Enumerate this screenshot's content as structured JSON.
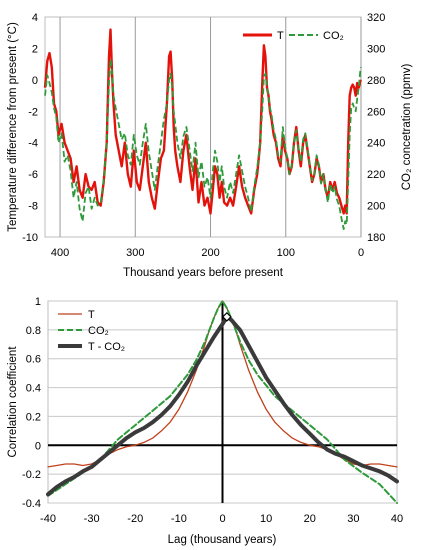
{
  "chart_data": [
    {
      "type": "line",
      "xlabel": "Thousand years before present",
      "ylabel": "Temperature difference from present (°C)",
      "y2label": "CO₂ concetration (ppmv)",
      "xlim": [
        420,
        0
      ],
      "ylim": [
        -10,
        4
      ],
      "y2lim": [
        180,
        320
      ],
      "x_ticks": [
        400,
        300,
        200,
        100,
        0
      ],
      "y_ticks": [
        -10,
        -8,
        -6,
        -4,
        -2,
        0,
        2,
        4
      ],
      "y2_ticks": [
        180,
        200,
        220,
        240,
        260,
        280,
        300,
        320
      ],
      "grid": "vertical",
      "legend": "top-right",
      "series": [
        {
          "name": "T",
          "color": "#e3120b",
          "style": "solid",
          "x": [
            420,
            417,
            414,
            411,
            408,
            405,
            402,
            398,
            394,
            390,
            386,
            382,
            378,
            374,
            370,
            366,
            362,
            358,
            354,
            350,
            346,
            342,
            338,
            335,
            333,
            331,
            329,
            326,
            322,
            318,
            314,
            310,
            306,
            302,
            298,
            294,
            290,
            286,
            282,
            278,
            274,
            270,
            266,
            262,
            258,
            255,
            253,
            251,
            249,
            247,
            244,
            240,
            236,
            232,
            228,
            224,
            220,
            216,
            212,
            208,
            204,
            200,
            197,
            194,
            191,
            188,
            185,
            182,
            178,
            174,
            170,
            166,
            162,
            158,
            154,
            150,
            146,
            142,
            138,
            134,
            131,
            129,
            127,
            125,
            123,
            121,
            119,
            116,
            113,
            110,
            107,
            104,
            101,
            98,
            95,
            92,
            89,
            86,
            83,
            80,
            77,
            74,
            71,
            68,
            65,
            62,
            59,
            56,
            53,
            50,
            47,
            44,
            41,
            38,
            35,
            32,
            29,
            26,
            23,
            21,
            19,
            17,
            15,
            13,
            11,
            9,
            7,
            5,
            3,
            1,
            0
          ],
          "values": [
            -0.5,
            1.2,
            1.7,
            0.8,
            -1.5,
            -2.0,
            -3.5,
            -2.8,
            -4.0,
            -4.5,
            -5.0,
            -6.5,
            -5.5,
            -7.0,
            -7.5,
            -6.0,
            -6.8,
            -7.0,
            -6.5,
            -7.8,
            -8.0,
            -6.5,
            -4.0,
            1.5,
            3.2,
            0.5,
            -1.5,
            -3.5,
            -4.5,
            -5.5,
            -4.0,
            -6.0,
            -6.8,
            -4.5,
            -6.5,
            -7.0,
            -5.5,
            -4.0,
            -6.5,
            -7.5,
            -8.2,
            -6.5,
            -5.0,
            -4.5,
            -1.5,
            1.5,
            1.8,
            0.0,
            -3.0,
            -4.5,
            -5.5,
            -6.5,
            -4.5,
            -3.5,
            -5.5,
            -7.0,
            -5.0,
            -7.8,
            -6.5,
            -8.0,
            -7.5,
            -8.5,
            -7.0,
            -5.5,
            -6.0,
            -7.5,
            -6.5,
            -7.8,
            -8.0,
            -7.5,
            -8.0,
            -6.8,
            -5.5,
            -6.8,
            -7.5,
            -8.0,
            -8.5,
            -7.0,
            -6.0,
            -4.0,
            0.0,
            2.2,
            1.5,
            -0.5,
            -1.0,
            -2.0,
            -2.5,
            -3.5,
            -4.0,
            -5.0,
            -5.5,
            -3.5,
            -4.5,
            -5.0,
            -6.0,
            -5.5,
            -4.0,
            -3.0,
            -4.5,
            -5.5,
            -4.0,
            -3.5,
            -4.5,
            -5.5,
            -6.5,
            -6.0,
            -5.0,
            -5.5,
            -6.5,
            -6.0,
            -7.0,
            -7.5,
            -6.5,
            -7.0,
            -6.5,
            -7.2,
            -7.5,
            -8.0,
            -8.5,
            -8.0,
            -8.5,
            -4.0,
            -1.0,
            -0.5,
            -0.3,
            -0.5,
            -1.0,
            -0.2,
            -0.5,
            -0.1,
            0.0
          ]
        },
        {
          "name": "CO₂",
          "color": "#2e9a3a",
          "style": "dashed",
          "axis": "right",
          "x": [
            420,
            417,
            414,
            411,
            408,
            405,
            402,
            398,
            394,
            390,
            386,
            382,
            378,
            374,
            370,
            366,
            362,
            358,
            354,
            350,
            346,
            342,
            338,
            335,
            333,
            331,
            329,
            326,
            322,
            318,
            314,
            310,
            306,
            302,
            298,
            294,
            290,
            286,
            282,
            278,
            274,
            270,
            266,
            262,
            258,
            255,
            253,
            251,
            249,
            247,
            244,
            240,
            236,
            232,
            228,
            224,
            220,
            216,
            212,
            208,
            204,
            200,
            197,
            194,
            191,
            188,
            185,
            182,
            178,
            174,
            170,
            166,
            162,
            158,
            154,
            150,
            146,
            142,
            138,
            134,
            131,
            129,
            127,
            125,
            123,
            121,
            119,
            116,
            113,
            110,
            107,
            104,
            101,
            98,
            95,
            92,
            89,
            86,
            83,
            80,
            77,
            74,
            71,
            68,
            65,
            62,
            59,
            56,
            53,
            50,
            47,
            44,
            41,
            38,
            35,
            32,
            29,
            26,
            23,
            21,
            19,
            17,
            15,
            13,
            11,
            9,
            7,
            5,
            3,
            1,
            0
          ],
          "values": [
            270,
            283,
            278,
            272,
            262,
            256,
            240,
            246,
            228,
            232,
            222,
            205,
            215,
            198,
            190,
            208,
            212,
            198,
            205,
            200,
            202,
            216,
            240,
            278,
            293,
            285,
            270,
            262,
            252,
            242,
            246,
            232,
            226,
            245,
            232,
            226,
            240,
            252,
            234,
            222,
            210,
            226,
            240,
            255,
            265,
            280,
            284,
            275,
            260,
            252,
            240,
            230,
            244,
            250,
            236,
            222,
            240,
            218,
            228,
            212,
            218,
            205,
            222,
            235,
            228,
            215,
            225,
            212,
            205,
            215,
            208,
            220,
            232,
            222,
            212,
            205,
            196,
            212,
            224,
            240,
            262,
            282,
            284,
            276,
            270,
            262,
            258,
            248,
            242,
            232,
            228,
            250,
            238,
            230,
            220,
            226,
            240,
            248,
            236,
            228,
            242,
            246,
            236,
            226,
            216,
            220,
            232,
            226,
            214,
            220,
            210,
            202,
            214,
            208,
            212,
            204,
            200,
            192,
            185,
            190,
            188,
            215,
            245,
            262,
            265,
            262,
            260,
            268,
            275,
            285,
            288
          ]
        }
      ]
    },
    {
      "type": "line",
      "xlabel": "Lag (thousand years)",
      "ylabel": "Correlation coefficient",
      "xlim": [
        -40,
        40
      ],
      "ylim": [
        -0.4,
        1
      ],
      "x_ticks": [
        -40,
        -30,
        -20,
        -10,
        0,
        10,
        20,
        30,
        40
      ],
      "y_ticks": [
        -0.4,
        -0.2,
        0,
        0.2,
        0.4,
        0.6,
        0.8,
        1
      ],
      "grid": "horizontal",
      "legend": "top-left",
      "series": [
        {
          "name": "T",
          "color": "#c1401b",
          "style": "solid",
          "x": [
            -40,
            -38,
            -36,
            -34,
            -32,
            -30,
            -28,
            -26,
            -24,
            -22,
            -20,
            -18,
            -16,
            -14,
            -12,
            -10,
            -8,
            -6,
            -4,
            -3,
            -2,
            -1,
            0,
            1,
            2,
            3,
            4,
            6,
            8,
            10,
            12,
            14,
            16,
            18,
            20,
            22,
            24,
            26,
            28,
            30,
            32,
            34,
            36,
            38,
            40
          ],
          "values": [
            -0.15,
            -0.14,
            -0.13,
            -0.13,
            -0.14,
            -0.13,
            -0.1,
            -0.06,
            -0.03,
            -0.01,
            0.0,
            0.02,
            0.05,
            0.1,
            0.16,
            0.25,
            0.37,
            0.52,
            0.7,
            0.8,
            0.88,
            0.95,
            1.0,
            0.95,
            0.88,
            0.8,
            0.7,
            0.52,
            0.37,
            0.25,
            0.16,
            0.1,
            0.05,
            0.02,
            0.0,
            -0.01,
            -0.03,
            -0.06,
            -0.1,
            -0.13,
            -0.14,
            -0.13,
            -0.13,
            -0.14,
            -0.15
          ]
        },
        {
          "name": "CO₂",
          "color": "#2e9a3a",
          "style": "dashed",
          "x": [
            -40,
            -36,
            -32,
            -28,
            -24,
            -20,
            -16,
            -12,
            -8,
            -6,
            -4,
            -2,
            -1,
            0,
            1,
            2,
            4,
            6,
            8,
            12,
            16,
            20,
            24,
            28,
            32,
            36,
            40
          ],
          "values": [
            -0.35,
            -0.27,
            -0.19,
            -0.1,
            0.04,
            0.14,
            0.24,
            0.34,
            0.49,
            0.59,
            0.72,
            0.88,
            0.95,
            1.0,
            0.95,
            0.88,
            0.72,
            0.59,
            0.49,
            0.34,
            0.24,
            0.14,
            0.04,
            -0.1,
            -0.19,
            -0.27,
            -0.4
          ]
        },
        {
          "name": "T - CO₂",
          "color": "#3a3a3a",
          "style": "solid",
          "x": [
            -40,
            -38,
            -36,
            -34,
            -32,
            -30,
            -28,
            -26,
            -24,
            -22,
            -20,
            -18,
            -16,
            -14,
            -12,
            -10,
            -8,
            -6,
            -4,
            -2,
            0,
            1,
            2,
            4,
            6,
            8,
            10,
            12,
            14,
            16,
            18,
            20,
            22,
            24,
            26,
            28,
            30,
            32,
            34,
            36,
            38,
            40
          ],
          "values": [
            -0.34,
            -0.29,
            -0.25,
            -0.22,
            -0.18,
            -0.15,
            -0.1,
            -0.05,
            0.0,
            0.05,
            0.09,
            0.12,
            0.16,
            0.21,
            0.27,
            0.35,
            0.44,
            0.55,
            0.65,
            0.75,
            0.84,
            0.89,
            0.87,
            0.8,
            0.69,
            0.58,
            0.47,
            0.38,
            0.29,
            0.21,
            0.14,
            0.08,
            0.02,
            -0.03,
            -0.06,
            -0.08,
            -0.11,
            -0.14,
            -0.16,
            -0.18,
            -0.21,
            -0.25
          ]
        }
      ],
      "annotations": [
        {
          "type": "marker",
          "shape": "diamond",
          "x": 1,
          "y": 0.89
        }
      ]
    }
  ]
}
